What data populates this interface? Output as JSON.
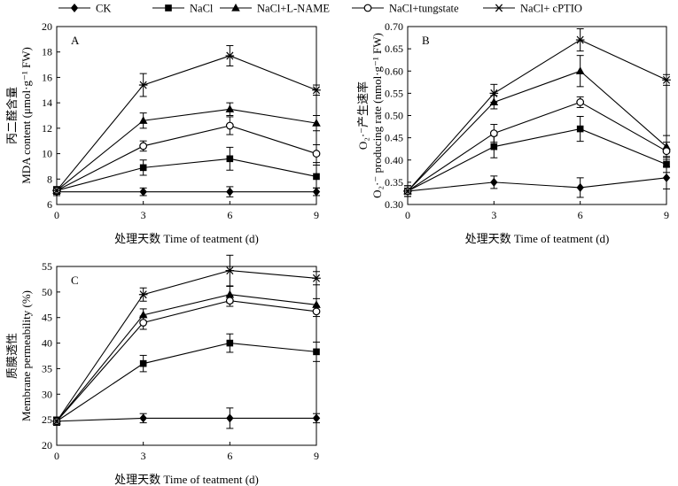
{
  "chart_data": {
    "legend": [
      "CK",
      "NaCl",
      "NaCl+L-NAME",
      "NaCl+tungstate",
      "NaCl+ cPTIO"
    ],
    "panels": [
      {
        "type": "line",
        "panel_label": "A",
        "x": [
          0,
          3,
          6,
          9
        ],
        "xlabel": "处理天数 Time of teatment (d)",
        "ylabel_zh": "丙二醛含量",
        "ylabel_en": "MDA content (μmol·g⁻¹ FW)",
        "ylim": [
          6,
          20
        ],
        "yticks": [
          6,
          8,
          10,
          12,
          14,
          16,
          18,
          20
        ],
        "yticklabels": [
          "6",
          "8",
          "10",
          "12",
          "14",
          "16",
          "18",
          "20"
        ],
        "series": [
          {
            "name": "CK",
            "marker": "diamond",
            "values": [
              7.0,
              7.0,
              7.0,
              7.0
            ],
            "err": [
              0.3,
              0.3,
              0.4,
              0.3
            ]
          },
          {
            "name": "NaCl",
            "marker": "square",
            "values": [
              7.1,
              8.9,
              9.6,
              8.2
            ],
            "err": [
              0.3,
              0.6,
              0.9,
              0.9
            ]
          },
          {
            "name": "NaCl+L-NAME",
            "marker": "triangle",
            "values": [
              7.1,
              12.6,
              13.5,
              12.4
            ],
            "err": [
              0.3,
              0.6,
              0.5,
              0.6
            ]
          },
          {
            "name": "NaCl+tungstate",
            "marker": "circle",
            "values": [
              7.1,
              10.6,
              12.2,
              10.0
            ],
            "err": [
              0.3,
              0.4,
              0.7,
              0.7
            ]
          },
          {
            "name": "NaCl+ cPTIO",
            "marker": "star",
            "values": [
              7.1,
              15.4,
              17.7,
              15.0
            ],
            "err": [
              0.3,
              0.9,
              0.8,
              0.4
            ]
          }
        ]
      },
      {
        "type": "line",
        "panel_label": "B",
        "x": [
          0,
          3,
          6,
          9
        ],
        "xlabel": "处理天数 Time of teatment (d)",
        "ylabel_zh": "O₂·⁻产生速率",
        "ylabel_en": "O₂·⁻ producing rate (nmol·g⁻¹ FW)",
        "ylim": [
          0.3,
          0.7
        ],
        "yticks": [
          0.3,
          0.35,
          0.4,
          0.45,
          0.5,
          0.55,
          0.6,
          0.65,
          0.7
        ],
        "yticklabels": [
          "0.30",
          "0.35",
          "0.40",
          "0.45",
          "0.50",
          "0.55",
          "0.60",
          "0.65",
          "0.70"
        ],
        "series": [
          {
            "name": "CK",
            "marker": "diamond",
            "values": [
              0.33,
              0.35,
              0.338,
              0.36
            ],
            "err": [
              0.012,
              0.014,
              0.022,
              0.025
            ]
          },
          {
            "name": "NaCl",
            "marker": "square",
            "values": [
              0.33,
              0.43,
              0.47,
              0.39
            ],
            "err": [
              0.012,
              0.025,
              0.028,
              0.018
            ]
          },
          {
            "name": "NaCl+L-NAME",
            "marker": "triangle",
            "values": [
              0.33,
              0.53,
              0.6,
              0.43
            ],
            "err": [
              0.012,
              0.015,
              0.035,
              0.025
            ]
          },
          {
            "name": "NaCl+tungstate",
            "marker": "circle",
            "values": [
              0.33,
              0.46,
              0.53,
              0.42
            ],
            "err": [
              0.012,
              0.02,
              0.012,
              0.02
            ]
          },
          {
            "name": "NaCl+ cPTIO",
            "marker": "star",
            "values": [
              0.33,
              0.55,
              0.67,
              0.58
            ],
            "err": [
              0.012,
              0.02,
              0.025,
              0.012
            ]
          }
        ]
      },
      {
        "type": "line",
        "panel_label": "C",
        "x": [
          0,
          3,
          6,
          9
        ],
        "xlabel": "处理天数 Time of teatment (d)",
        "ylabel_zh": "质膜透性",
        "ylabel_en": "Membrane permeability (%)",
        "ylim": [
          20,
          55
        ],
        "yticks": [
          20,
          25,
          30,
          35,
          40,
          45,
          50,
          55
        ],
        "yticklabels": [
          "20",
          "25",
          "30",
          "35",
          "40",
          "45",
          "50",
          "55"
        ],
        "series": [
          {
            "name": "CK",
            "marker": "diamond",
            "values": [
              24.7,
              25.3,
              25.3,
              25.3
            ],
            "err": [
              0.8,
              0.9,
              2.0,
              0.9
            ]
          },
          {
            "name": "NaCl",
            "marker": "square",
            "values": [
              24.7,
              36.0,
              40.0,
              38.3
            ],
            "err": [
              0.8,
              1.6,
              1.8,
              1.9
            ]
          },
          {
            "name": "NaCl+L-NAME",
            "marker": "triangle",
            "values": [
              24.7,
              45.5,
              49.5,
              47.5
            ],
            "err": [
              0.8,
              1.2,
              1.6,
              1.2
            ]
          },
          {
            "name": "NaCl+tungstate",
            "marker": "circle",
            "values": [
              24.7,
              44.0,
              48.3,
              46.2
            ],
            "err": [
              0.8,
              1.3,
              1.1,
              1.0
            ]
          },
          {
            "name": "NaCl+ cPTIO",
            "marker": "star",
            "values": [
              24.7,
              49.5,
              54.2,
              52.7
            ],
            "err": [
              0.8,
              1.3,
              3.0,
              1.3
            ]
          }
        ]
      }
    ]
  }
}
